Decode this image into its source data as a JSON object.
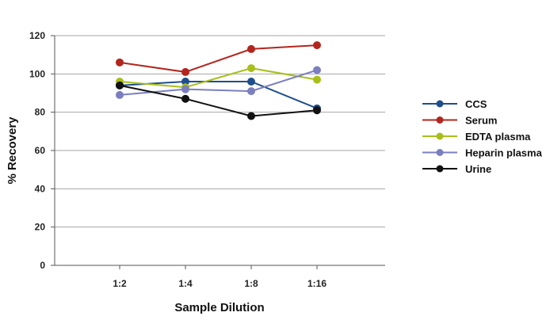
{
  "chart_data": {
    "type": "line",
    "categories": [
      "1:2",
      "1:4",
      "1:8",
      "1:16"
    ],
    "series": [
      {
        "name": "CCS",
        "color": "#1f4e8c",
        "values": [
          94,
          96,
          96,
          82
        ]
      },
      {
        "name": "Serum",
        "color": "#b3261e",
        "values": [
          106,
          101,
          113,
          115
        ]
      },
      {
        "name": "EDTA plasma",
        "color": "#a8bf1a",
        "values": [
          96,
          93,
          103,
          97
        ]
      },
      {
        "name": "Heparin plasma",
        "color": "#7b7fbf",
        "values": [
          89,
          92,
          91,
          102
        ]
      },
      {
        "name": "Urine",
        "color": "#111111",
        "values": [
          94,
          87,
          78,
          81
        ]
      }
    ],
    "xlabel": "Sample Dilution",
    "ylabel": "% Recovery",
    "ylim": [
      0,
      120
    ],
    "yticks": [
      0,
      20,
      40,
      60,
      80,
      100,
      120
    ],
    "grid": true,
    "legend_position": "right"
  }
}
